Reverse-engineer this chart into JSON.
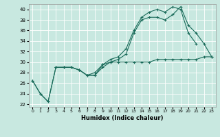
{
  "title": "",
  "xlabel": "Humidex (Indice chaleur)",
  "ylabel": "",
  "background_color": "#c8e8e0",
  "grid_color": "#ffffff",
  "line_color": "#1a6b5a",
  "xlim": [
    -0.5,
    23.5
  ],
  "ylim": [
    21.5,
    41.0
  ],
  "xticks": [
    0,
    1,
    2,
    3,
    4,
    5,
    6,
    7,
    8,
    9,
    10,
    11,
    12,
    13,
    14,
    15,
    16,
    17,
    18,
    19,
    20,
    21,
    22,
    23
  ],
  "yticks": [
    22,
    24,
    26,
    28,
    30,
    32,
    34,
    36,
    38,
    40
  ],
  "line1_x": [
    0,
    1,
    2,
    3,
    4,
    5,
    6,
    7,
    8,
    9,
    10,
    11,
    12,
    13,
    14,
    15,
    16,
    17,
    18,
    19,
    20,
    21,
    22,
    23
  ],
  "line1_y": [
    26.5,
    24.0,
    22.5,
    29.0,
    29.0,
    29.0,
    28.5,
    27.5,
    27.5,
    29.5,
    30.0,
    30.5,
    31.5,
    35.5,
    38.0,
    38.5,
    38.5,
    38.0,
    39.0,
    40.5,
    37.0,
    35.5,
    33.5,
    31.0
  ],
  "line2_x": [
    0,
    1,
    2,
    3,
    4,
    5,
    6,
    7,
    8,
    9,
    10,
    11,
    12,
    13,
    14,
    15,
    16,
    17,
    18,
    19,
    20,
    21
  ],
  "line2_y": [
    26.5,
    24.0,
    22.5,
    29.0,
    29.0,
    29.0,
    28.5,
    27.5,
    28.0,
    29.5,
    30.5,
    31.0,
    32.5,
    36.0,
    38.5,
    39.5,
    40.0,
    39.5,
    40.5,
    40.0,
    35.5,
    33.5
  ],
  "line3_x": [
    3,
    4,
    5,
    6,
    7,
    8,
    9,
    10,
    11,
    12,
    13,
    14,
    15,
    16,
    17,
    18,
    19,
    20,
    21,
    22,
    23
  ],
  "line3_y": [
    29.0,
    29.0,
    29.0,
    28.5,
    27.5,
    27.5,
    29.0,
    30.0,
    30.0,
    30.0,
    30.0,
    30.0,
    30.0,
    30.5,
    30.5,
    30.5,
    30.5,
    30.5,
    30.5,
    31.0,
    31.0
  ]
}
